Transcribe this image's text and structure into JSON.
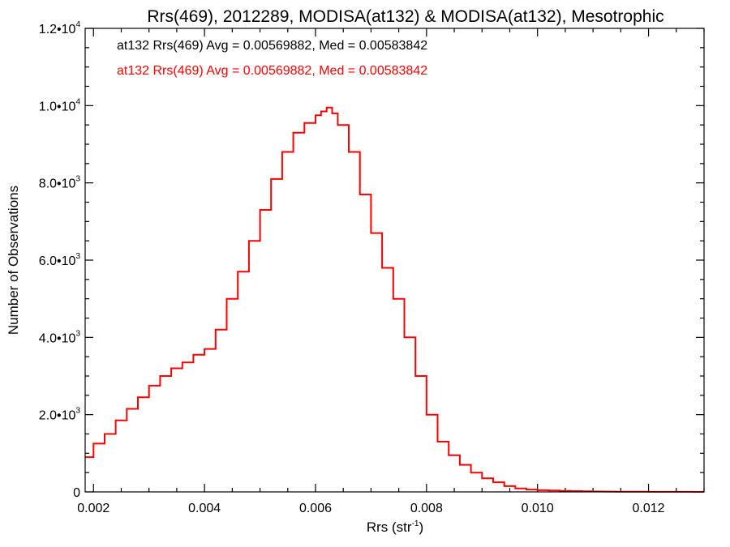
{
  "chart_data": {
    "type": "line",
    "title": "Rrs(469), 2012289, MODISA(at132) & MODISA(at132), Mesotrophic",
    "xlabel": "Rrs (str",
    "xlabel_sup": "-1",
    "xlabel_close": ")",
    "ylabel": "Number of Observations",
    "xlim": [
      0.00185,
      0.013
    ],
    "ylim": [
      0,
      12000
    ],
    "x_ticks": [
      {
        "value": 0.002,
        "label": "0.002"
      },
      {
        "value": 0.004,
        "label": "0.004"
      },
      {
        "value": 0.006,
        "label": "0.006"
      },
      {
        "value": 0.008,
        "label": "0.008"
      },
      {
        "value": 0.01,
        "label": "0.010"
      },
      {
        "value": 0.012,
        "label": "0.012"
      }
    ],
    "y_ticks": [
      {
        "value": 0,
        "mant": "0",
        "exp": ""
      },
      {
        "value": 2000,
        "mant": "2.0•10",
        "exp": "3"
      },
      {
        "value": 4000,
        "mant": "4.0•10",
        "exp": "3"
      },
      {
        "value": 6000,
        "mant": "6.0•10",
        "exp": "3"
      },
      {
        "value": 8000,
        "mant": "8.0•10",
        "exp": "3"
      },
      {
        "value": 10000,
        "mant": "1.0•10",
        "exp": "4"
      },
      {
        "value": 12000,
        "mant": "1.2•10",
        "exp": "4"
      }
    ],
    "annotations": [
      {
        "text": "at132 Rrs(469) Avg = 0.00569882, Med = 0.00583842",
        "color": "#000000"
      },
      {
        "text": "at132 Rrs(469) Avg = 0.00569882, Med = 0.00583842",
        "color": "#ff0000"
      }
    ],
    "series": [
      {
        "color": "#ff0000",
        "style": "histogram-step",
        "x": [
          0.00185,
          0.002,
          0.0022,
          0.0024,
          0.0026,
          0.0028,
          0.003,
          0.0032,
          0.0034,
          0.0036,
          0.0038,
          0.004,
          0.0042,
          0.0044,
          0.0046,
          0.0048,
          0.005,
          0.0052,
          0.0054,
          0.0056,
          0.0058,
          0.006,
          0.0061,
          0.0062,
          0.0063,
          0.0064,
          0.0066,
          0.0068,
          0.007,
          0.0072,
          0.0074,
          0.0076,
          0.0078,
          0.008,
          0.0082,
          0.0084,
          0.0086,
          0.0088,
          0.009,
          0.0092,
          0.0094,
          0.0096,
          0.0098,
          0.01,
          0.0102,
          0.0104,
          0.0106,
          0.0108,
          0.011,
          0.0112,
          0.0114,
          0.0116,
          0.0118,
          0.012,
          0.0122,
          0.0124,
          0.0126,
          0.0128,
          0.013
        ],
        "y": [
          900,
          1250,
          1500,
          1850,
          2150,
          2450,
          2750,
          3000,
          3200,
          3350,
          3550,
          3700,
          4200,
          5000,
          5700,
          6500,
          7300,
          8100,
          8800,
          9300,
          9550,
          9750,
          9850,
          9950,
          9800,
          9500,
          8800,
          7700,
          6700,
          5800,
          5000,
          4000,
          3000,
          2000,
          1300,
          950,
          700,
          500,
          350,
          250,
          150,
          90,
          60,
          45,
          35,
          25,
          20,
          15,
          10,
          8,
          6,
          5,
          4,
          3,
          3,
          2,
          2,
          1,
          1
        ]
      }
    ]
  }
}
